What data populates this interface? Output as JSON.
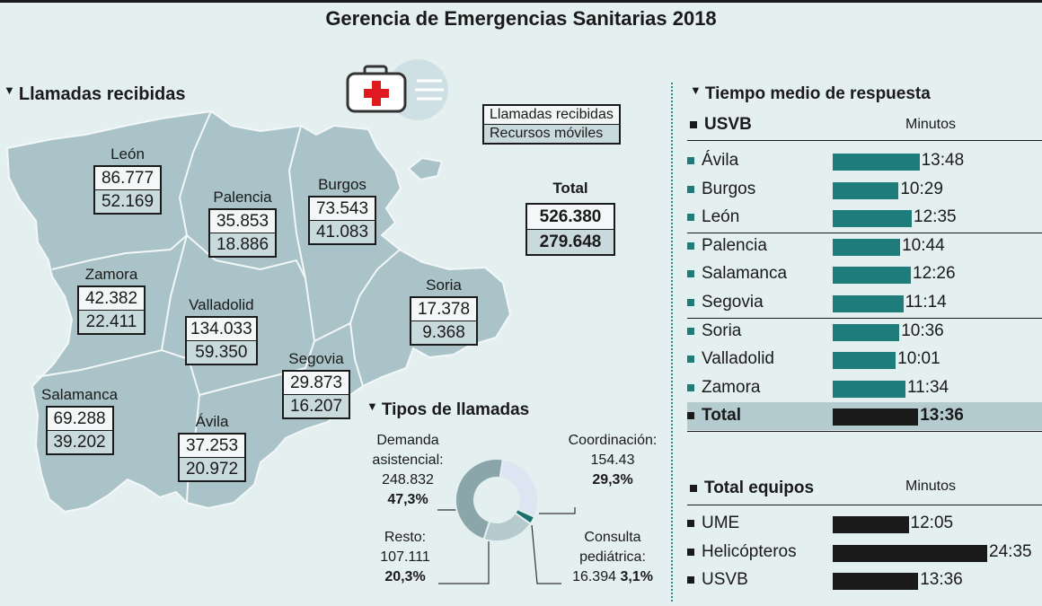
{
  "title": "Gerencia de Emergencias Sanitarias 2018",
  "sections": {
    "calls": "Llamadas recibidas",
    "types": "Tipos de llamadas",
    "response": "Tiempo medio de respuesta"
  },
  "legend": {
    "calls": "Llamadas recibidas",
    "resources": "Recursos móviles"
  },
  "total": {
    "label": "Total",
    "calls": "526.380",
    "resources": "279.648"
  },
  "colors": {
    "teal": "#1e7d7a",
    "dark": "#1a1a1a",
    "map": "#a9c3c8",
    "pie_dark": "#8aa6ab",
    "pie_mid": "#b4cacd",
    "pie_light": "#dde4f2",
    "pie_teal": "#1e6f6c"
  },
  "chart_data": [
    {
      "type": "table",
      "title": "Llamadas recibidas",
      "columns": [
        "Llamadas recibidas",
        "Recursos móviles"
      ],
      "rows": [
        {
          "name": "León",
          "calls": "86.777",
          "resources": "52.169"
        },
        {
          "name": "Palencia",
          "calls": "35.853",
          "resources": "18.886"
        },
        {
          "name": "Burgos",
          "calls": "73.543",
          "resources": "41.083"
        },
        {
          "name": "Zamora",
          "calls": "42.382",
          "resources": "22.411"
        },
        {
          "name": "Valladolid",
          "calls": "134.033",
          "resources": "59.350"
        },
        {
          "name": "Soria",
          "calls": "17.378",
          "resources": "9.368"
        },
        {
          "name": "Segovia",
          "calls": "29.873",
          "resources": "16.207"
        },
        {
          "name": "Salamanca",
          "calls": "69.288",
          "resources": "39.202"
        },
        {
          "name": "Ávila",
          "calls": "37.253",
          "resources": "20.972"
        }
      ]
    },
    {
      "type": "pie",
      "title": "Tipos de llamadas",
      "slices": [
        {
          "label_lines": [
            "Demanda",
            "asistencial:"
          ],
          "count": "248.832",
          "pct": "47,3%",
          "value": 47.3
        },
        {
          "label_lines": [
            "Coordinación:"
          ],
          "count": "154.43",
          "pct": "29,3%",
          "value": 29.3
        },
        {
          "label_lines": [
            "Consulta",
            "pediátrica:"
          ],
          "count": "16.394",
          "pct": "3,1%",
          "value": 3.1
        },
        {
          "label_lines": [
            "Resto:"
          ],
          "count": "107.111",
          "pct": "20,3%",
          "value": 20.3
        }
      ]
    },
    {
      "type": "bar",
      "title": "USVB",
      "unit": "Minutos",
      "categories": [
        "Ávila",
        "Burgos",
        "León",
        "Palencia",
        "Salamanca",
        "Segovia",
        "Soria",
        "Valladolid",
        "Zamora",
        "Total"
      ],
      "labels": [
        "13:48",
        "10:29",
        "12:35",
        "10:44",
        "12:26",
        "11:14",
        "10:36",
        "10:01",
        "11:34",
        "13:36"
      ],
      "values": [
        13.8,
        10.48,
        12.58,
        10.73,
        12.43,
        11.23,
        10.6,
        10.02,
        11.57,
        13.6
      ]
    },
    {
      "type": "bar",
      "title": "Total equipos",
      "unit": "Minutos",
      "categories": [
        "UME",
        "Helicópteros",
        "USVB"
      ],
      "labels": [
        "12:05",
        "24:35",
        "13:36"
      ],
      "values": [
        12.08,
        24.58,
        13.6
      ]
    }
  ]
}
